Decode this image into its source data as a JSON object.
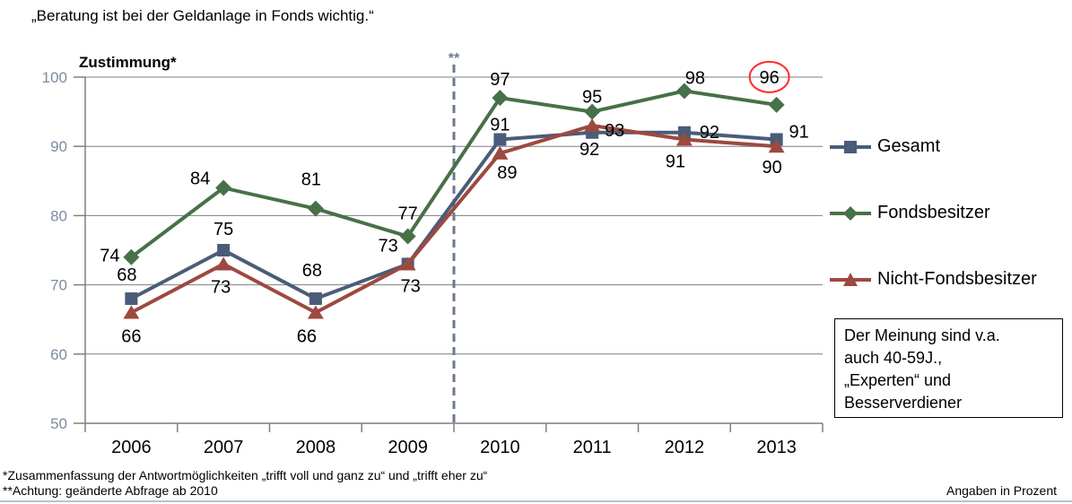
{
  "title": "„Beratung ist bei der Geldanlage in Fonds wichtig.“",
  "y_axis_title": "Zustimmung*",
  "break_marker": "**",
  "annotation_box": {
    "text": "Der Meinung sind v.a.\nauch 40-59J.,\n„Experten“ und\nBesserverdiener"
  },
  "footnotes": {
    "line1": "*Zusammenfassung der Antwortmöglichkeiten „trifft voll und ganz zu“ und „trifft eher zu“",
    "line2": "**Achtung: geänderte Abfrage ab 2010"
  },
  "footer": {
    "right": "Angaben in Prozent"
  },
  "colors": {
    "grid": "#7f7f7f",
    "axis_tick_text": "#7d8aa2",
    "break_line": "#6b7990",
    "highlight_circle": "#ff2a2a",
    "divider": "#b4c3d6",
    "label_text": "#000000"
  },
  "chart_data": {
    "type": "line",
    "title": "Zustimmung*",
    "categories": [
      "2006",
      "2007",
      "2008",
      "2009",
      "2010",
      "2011",
      "2012",
      "2013"
    ],
    "series": [
      {
        "name": "Gesamt",
        "marker": "square",
        "color": "#4a5c77",
        "values": [
          68,
          75,
          68,
          73,
          91,
          92,
          92,
          91
        ]
      },
      {
        "name": "Fondsbesitzer",
        "marker": "diamond",
        "color": "#477148",
        "values": [
          74,
          84,
          81,
          77,
          97,
          95,
          98,
          96
        ]
      },
      {
        "name": "Nicht-Fondsbesitzer",
        "marker": "triangle",
        "color": "#9d493f",
        "values": [
          66,
          73,
          66,
          73,
          89,
          93,
          91,
          90
        ]
      }
    ],
    "ylim": [
      50,
      100
    ],
    "yticks": [
      50,
      60,
      70,
      80,
      90,
      100
    ],
    "grid": true,
    "legend_position": "right",
    "break_line_after": "2009",
    "break_note": "**Achtung: geänderte Abfrage ab 2010",
    "highlight": {
      "series": "Fondsbesitzer",
      "category": "2013",
      "value": 96,
      "style": "red-circle"
    },
    "data_labels": true,
    "units": "Prozent"
  }
}
